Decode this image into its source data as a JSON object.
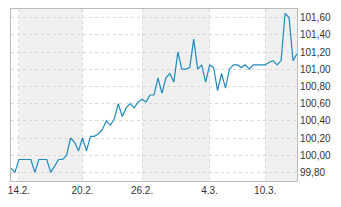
{
  "chart_data": {
    "type": "line",
    "categories": [
      null,
      null,
      "14.2.",
      null,
      null,
      null,
      null,
      null,
      null,
      null,
      null,
      null,
      null,
      null,
      null,
      null,
      null,
      null,
      "20.2.",
      null,
      null,
      null,
      null,
      null,
      null,
      null,
      null,
      null,
      null,
      null,
      null,
      null,
      null,
      "26.2.",
      null,
      null,
      null,
      null,
      null,
      null,
      null,
      null,
      null,
      null,
      null,
      null,
      null,
      null,
      null,
      null,
      "4.3.",
      null,
      null,
      null,
      null,
      null,
      null,
      null,
      null,
      null,
      null,
      null,
      null,
      null,
      "10.3.",
      null,
      null,
      null,
      null,
      null,
      null,
      null,
      null
    ],
    "values": [
      99.85,
      99.8,
      99.95,
      99.95,
      99.95,
      99.95,
      99.8,
      99.95,
      99.95,
      99.95,
      99.8,
      99.88,
      99.95,
      99.95,
      100.0,
      100.2,
      100.15,
      100.05,
      100.2,
      100.05,
      100.22,
      100.22,
      100.25,
      100.3,
      100.4,
      100.35,
      100.42,
      100.6,
      100.45,
      100.55,
      100.6,
      100.55,
      100.62,
      100.65,
      100.62,
      100.7,
      100.7,
      100.9,
      100.72,
      100.9,
      100.95,
      100.85,
      101.2,
      101.0,
      101.0,
      101.02,
      101.35,
      101.0,
      101.05,
      100.85,
      101.05,
      101.02,
      100.75,
      100.95,
      100.78,
      101.0,
      101.05,
      101.05,
      101.02,
      101.05,
      101.0,
      101.05,
      101.05,
      101.05,
      101.05,
      101.08,
      101.1,
      101.05,
      101.1,
      101.65,
      101.6,
      101.1,
      101.18
    ],
    "color": "#1f8ac0",
    "ylim": [
      99.7,
      101.7
    ],
    "yticks": [
      {
        "value": 99.8,
        "label": "99,80"
      },
      {
        "value": 100.0,
        "label": "100,00"
      },
      {
        "value": 100.2,
        "label": "100,20"
      },
      {
        "value": 100.4,
        "label": "100,40"
      },
      {
        "value": 100.6,
        "label": "100,60"
      },
      {
        "value": 100.8,
        "label": "100,80"
      },
      {
        "value": 101.0,
        "label": "101,00"
      },
      {
        "value": 101.2,
        "label": "101,20"
      },
      {
        "value": 101.4,
        "label": "101,40"
      },
      {
        "value": 101.6,
        "label": "101,60"
      }
    ],
    "grid": true
  }
}
